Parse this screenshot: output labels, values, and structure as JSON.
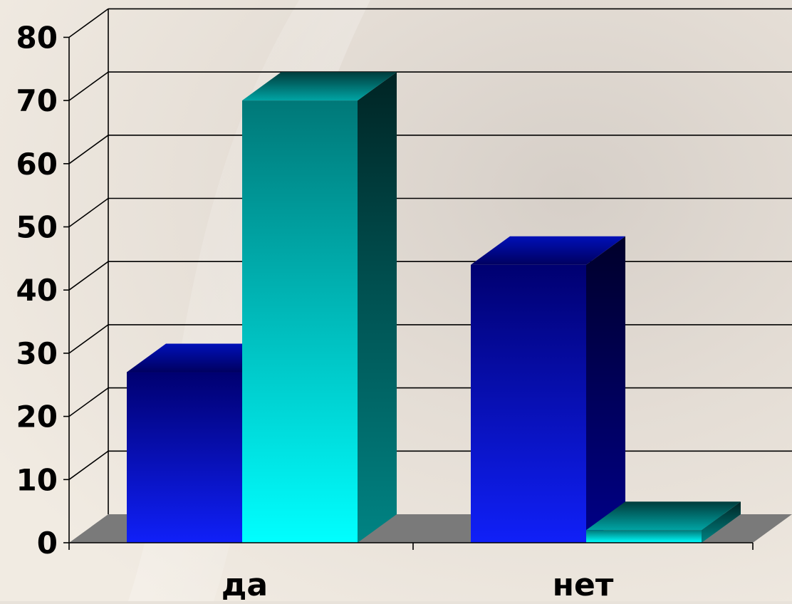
{
  "chart_data": {
    "type": "bar",
    "style": "3d-clustered-column",
    "categories": [
      "да",
      "нет"
    ],
    "series": [
      {
        "values": [
          27,
          44
        ],
        "color": "#0a14d8"
      },
      {
        "values": [
          70,
          2
        ],
        "color": "#00e8e8"
      }
    ],
    "yticks": [
      "0",
      "10",
      "20",
      "30",
      "40",
      "50",
      "60",
      "70",
      "80"
    ],
    "ylim": [
      0,
      80
    ],
    "grid": true,
    "legend": "none",
    "title": "",
    "xlabel": "",
    "ylabel": ""
  }
}
